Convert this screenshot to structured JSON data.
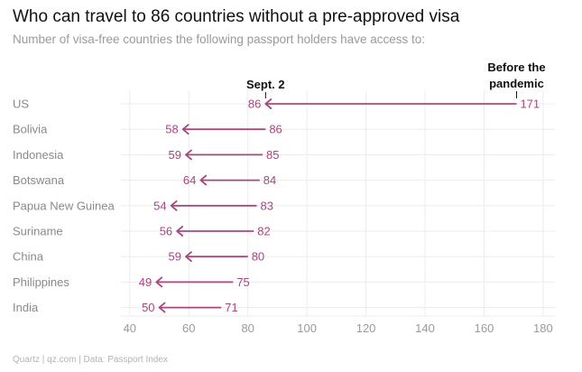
{
  "header": {
    "title": "Who can travel to 86 countries without a pre-approved visa",
    "subtitle": "Number of visa-free countries the following passport holders have access to:"
  },
  "footer": {
    "source": "Quartz | qz.com | Data: Passport Index"
  },
  "colors": {
    "series": "#a6487f",
    "grid": "#ececec",
    "label": "#8a8a8a",
    "annotation": "#111111"
  },
  "chart_data": {
    "type": "arrow-dumbbell",
    "title": "Who can travel to 86 countries without a pre-approved visa",
    "subtitle": "Number of visa-free countries the following passport holders have access to:",
    "xlim": [
      37,
      184
    ],
    "xticks": [
      40,
      60,
      80,
      100,
      120,
      140,
      160,
      180
    ],
    "grid": true,
    "categories": [
      "US",
      "Bolivia",
      "Indonesia",
      "Botswana",
      "Papua New Guinea",
      "Suriname",
      "China",
      "Philippines",
      "India"
    ],
    "series": [
      {
        "name": "Before the pandemic",
        "values": [
          171,
          86,
          85,
          84,
          83,
          82,
          80,
          75,
          71
        ]
      },
      {
        "name": "Sept. 2",
        "values": [
          86,
          58,
          59,
          64,
          54,
          56,
          59,
          49,
          50
        ]
      }
    ],
    "annotations": [
      {
        "text": "Sept. 2",
        "x": 86
      },
      {
        "text": "Before the",
        "x": 171
      },
      {
        "text": "pandemic",
        "x": 171
      }
    ]
  }
}
